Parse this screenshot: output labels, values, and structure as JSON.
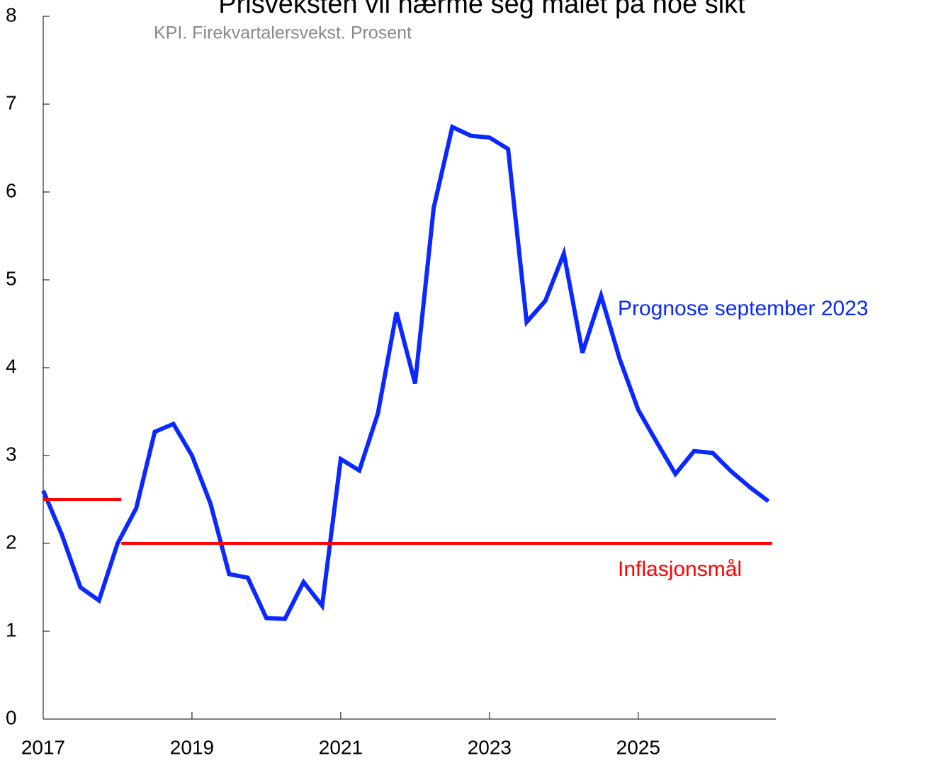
{
  "chart_data": {
    "type": "line",
    "title": "Prisveksten vil nærme seg målet på noe sikt",
    "subtitle": "KPI. Firekvartalersvekst. Prosent",
    "xlim": [
      2017,
      2026.85
    ],
    "xticks": [
      2017,
      2019,
      2021,
      2023,
      2025
    ],
    "ylim": [
      0,
      8
    ],
    "yticks": [
      0,
      1,
      2,
      3,
      4,
      5,
      6,
      7,
      8
    ],
    "grid": false,
    "series": [
      {
        "name": "Prognose september 2023",
        "color": "#0a28ff",
        "x": [
          2017,
          2017.25,
          2017.5,
          2017.75,
          2018,
          2018.25,
          2018.5,
          2018.75,
          2019,
          2019.25,
          2019.5,
          2019.75,
          2020,
          2020.25,
          2020.5,
          2020.75,
          2021,
          2021.25,
          2021.5,
          2021.75,
          2022,
          2022.25,
          2022.5,
          2022.75,
          2023,
          2023.25,
          2023.5,
          2023.75,
          2024,
          2024.25,
          2024.5,
          2024.75,
          2025,
          2025.25,
          2025.5,
          2025.75,
          2026,
          2026.25,
          2026.5,
          2026.75
        ],
        "values": [
          2.6,
          2.1,
          1.5,
          1.35,
          2.0,
          2.4,
          3.27,
          3.36,
          3.0,
          2.45,
          1.65,
          1.61,
          1.15,
          1.14,
          1.56,
          1.29,
          2.96,
          2.83,
          3.48,
          4.63,
          3.82,
          5.82,
          6.74,
          6.64,
          6.62,
          6.49,
          4.52,
          4.76,
          5.3,
          4.17,
          4.82,
          4.1,
          3.52,
          3.15,
          2.79,
          3.05,
          3.03,
          2.82,
          2.64,
          2.48
        ]
      },
      {
        "name": "Inflasjonsmål",
        "color": "#ff0000",
        "x": [
          2017,
          2018.05,
          2018.05,
          2018.05,
          2026.8
        ],
        "values": [
          2.5,
          2.5,
          null,
          2,
          2
        ]
      }
    ]
  }
}
